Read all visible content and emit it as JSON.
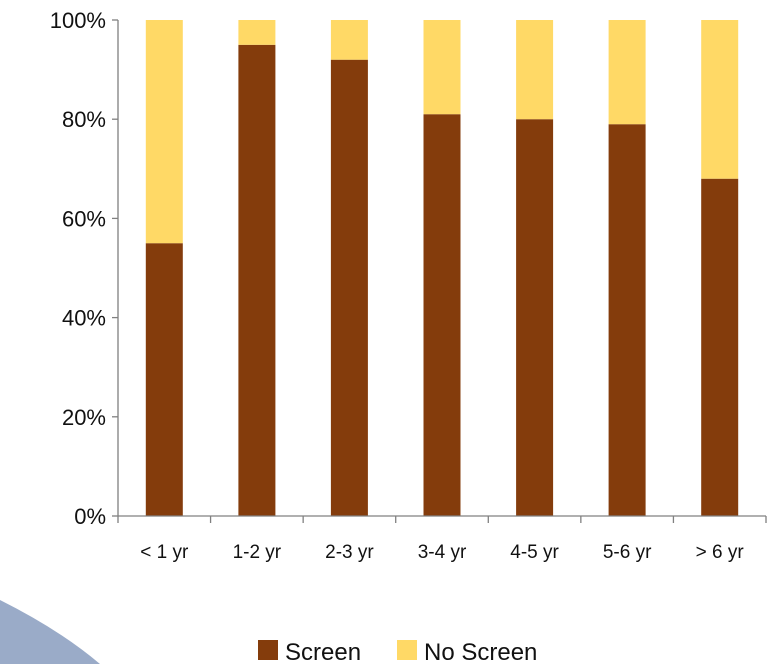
{
  "chart_data": {
    "type": "bar",
    "stacked": true,
    "categories": [
      "< 1 yr",
      "1-2 yr",
      "2-3 yr",
      "3-4 yr",
      "4-5 yr",
      "5-6 yr",
      "> 6 yr"
    ],
    "series": [
      {
        "name": "Screen",
        "color": "#843C0C",
        "values": [
          55,
          95,
          92,
          81,
          80,
          79,
          68
        ]
      },
      {
        "name": "No Screen",
        "color": "#FFD966",
        "values": [
          45,
          5,
          8,
          19,
          20,
          21,
          32
        ]
      }
    ],
    "ylim": [
      0,
      100
    ],
    "yticks": [
      "0%",
      "20%",
      "40%",
      "60%",
      "80%",
      "100%"
    ],
    "title": "",
    "xlabel": "",
    "ylabel": "",
    "grid": false,
    "legend_position": "bottom"
  },
  "colors": {
    "axis": "#808080",
    "decoration": "#8FA2C2"
  }
}
